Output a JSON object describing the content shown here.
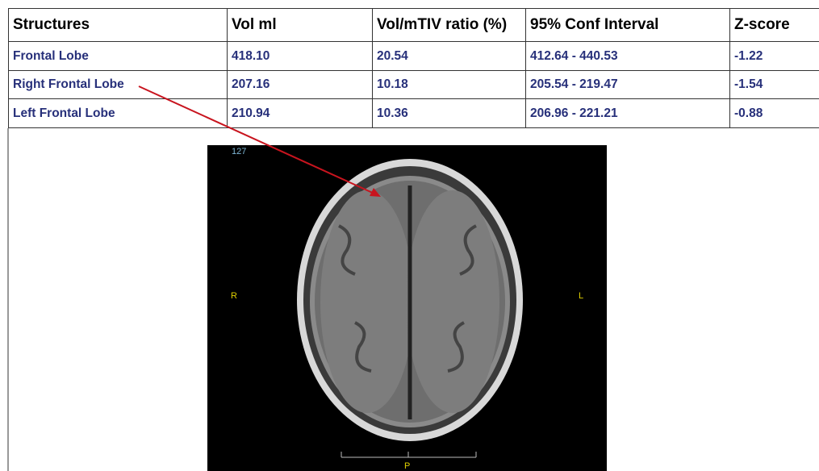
{
  "table": {
    "header": [
      "Structures",
      "Vol ml",
      "Vol/mTIV ratio (%)",
      "95% Conf Interval",
      "Z-score"
    ],
    "rows": [
      [
        "Frontal Lobe",
        "418.10",
        "20.54",
        "412.64 - 440.53",
        "-1.22"
      ],
      [
        "Right Frontal Lobe",
        "207.16",
        "10.18",
        "205.54 - 219.47",
        "-1.54"
      ],
      [
        "Left Frontal Lobe",
        "210.94",
        "10.36",
        "206.96 - 221.21",
        "-0.88"
      ]
    ]
  },
  "image": {
    "slice": "127",
    "left_label": "R",
    "right_label": "L",
    "bottom_label": "P"
  }
}
